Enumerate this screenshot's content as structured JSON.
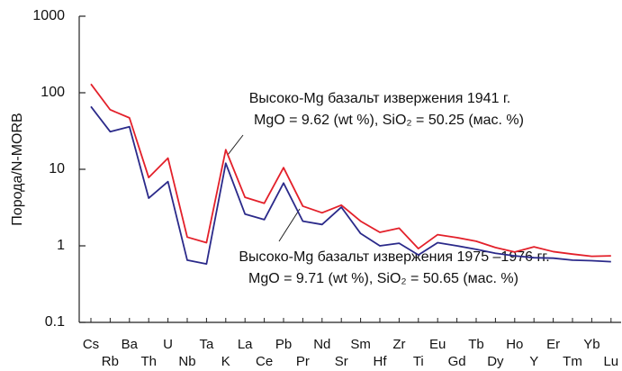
{
  "chart_data": {
    "type": "line",
    "y_label": "Порода/N-MORB",
    "categories": [
      "Cs",
      "Rb",
      "Ba",
      "Th",
      "U",
      "Nb",
      "Ta",
      "K",
      "La",
      "Ce",
      "Pb",
      "Pr",
      "Nd",
      "Sr",
      "Sm",
      "Hf",
      "Zr",
      "Ti",
      "Eu",
      "Gd",
      "Tb",
      "Dy",
      "Ho",
      "Y",
      "Er",
      "Tm",
      "Yb",
      "Lu"
    ],
    "series": [
      {
        "color": "#e3202a",
        "values": [
          130,
          60,
          47,
          7.8,
          14,
          1.3,
          1.1,
          18,
          4.3,
          3.6,
          10.5,
          3.3,
          2.7,
          3.4,
          2.1,
          1.5,
          1.7,
          0.92,
          1.4,
          1.28,
          1.15,
          0.95,
          0.83,
          0.97,
          0.84,
          0.78,
          0.73,
          0.74
        ]
      },
      {
        "color": "#2b2a8a",
        "values": [
          66,
          31,
          36,
          4.2,
          6.9,
          0.65,
          0.58,
          12,
          2.6,
          2.2,
          6.6,
          2.1,
          1.9,
          3.2,
          1.45,
          1.0,
          1.08,
          0.76,
          1.1,
          1.0,
          0.9,
          0.8,
          0.74,
          0.7,
          0.69,
          0.65,
          0.64,
          0.62
        ]
      }
    ],
    "annotations": [
      [
        "Высоко-Mg базальт извержения 1941 г.",
        "MgO = 9.62 (wt %), SiO₂ = 50.25 (мас. %)"
      ],
      [
        "Высоко-Mg базальт извержения 1975 –1976 гг.",
        "MgO = 9.71 (wt %), SiO₂ = 50.65 (мас. %)"
      ]
    ],
    "log_y": true,
    "ylim": [
      0.1,
      1000
    ],
    "yticks": [
      0.1,
      1,
      10,
      100,
      1000
    ]
  }
}
